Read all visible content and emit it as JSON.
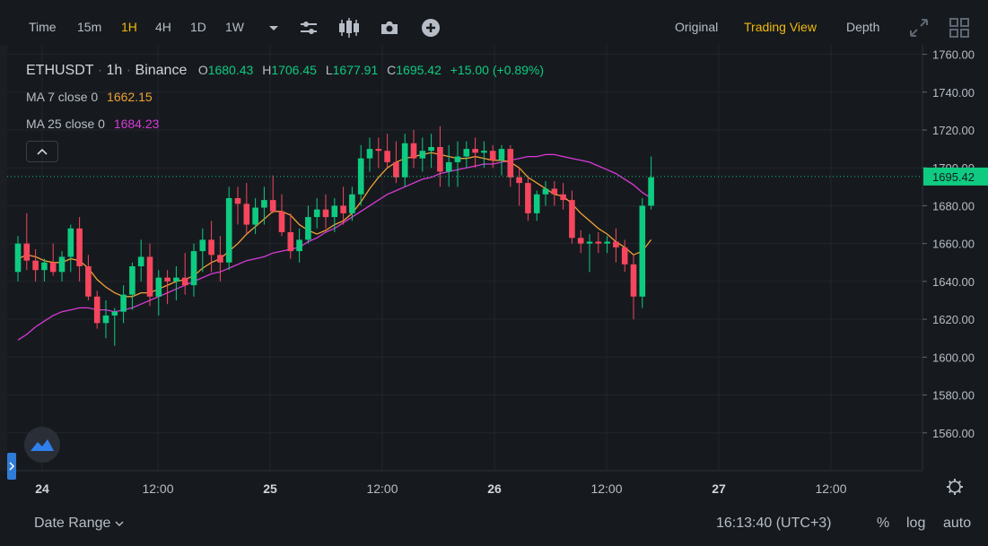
{
  "toolbar": {
    "left": [
      "Time",
      "15m",
      "1H",
      "4H",
      "1D",
      "1W"
    ],
    "active": "1H",
    "views": [
      "Original",
      "Trading View",
      "Depth"
    ],
    "active_view": "Trading View"
  },
  "legend": {
    "symbol": "ETHUSDT",
    "interval": "1h",
    "exchange": "Binance",
    "o_label": "O",
    "o": "1680.43",
    "h_label": "H",
    "h": "1706.45",
    "l_label": "L",
    "l": "1677.91",
    "c_label": "C",
    "c": "1695.42",
    "change": "+15.00 (+0.89%)",
    "ma7_label": "MA 7 close 0",
    "ma7": "1662.15",
    "ma25_label": "MA 25 close 0",
    "ma25": "1684.23"
  },
  "bottom": {
    "date_range": "Date Range",
    "time": "16:13:40 (UTC+3)",
    "pct": "%",
    "log": "log",
    "auto": "auto"
  },
  "colors": {
    "up": "#0ecb81",
    "down": "#f6465d",
    "ma7": "#f0a037",
    "ma25": "#d83ad8",
    "grid": "#22262c",
    "accent": "#f0b90b"
  },
  "chart_data": {
    "type": "candlestick",
    "ylim": [
      1540,
      1765
    ],
    "y_ticks": [
      "1760.00",
      "1740.00",
      "1720.00",
      "1700.00",
      "1680.00",
      "1660.00",
      "1640.00",
      "1620.00",
      "1600.00",
      "1580.00",
      "1560.00"
    ],
    "x_ticks": [
      "24",
      "12:00",
      "25",
      "12:00",
      "26",
      "12:00",
      "27",
      "12:00"
    ],
    "last_price": "1695.42",
    "candles": [
      [
        1645,
        1664,
        1640,
        1660
      ],
      [
        1660,
        1676,
        1646,
        1651
      ],
      [
        1651,
        1657,
        1640,
        1646
      ],
      [
        1646,
        1652,
        1640,
        1650
      ],
      [
        1650,
        1660,
        1643,
        1645
      ],
      [
        1645,
        1656,
        1640,
        1653
      ],
      [
        1653,
        1670,
        1645,
        1668
      ],
      [
        1668,
        1674,
        1640,
        1648
      ],
      [
        1648,
        1654,
        1630,
        1632
      ],
      [
        1632,
        1635,
        1615,
        1618
      ],
      [
        1618,
        1630,
        1610,
        1622
      ],
      [
        1622,
        1626,
        1606,
        1624
      ],
      [
        1624,
        1638,
        1618,
        1633
      ],
      [
        1633,
        1650,
        1625,
        1648
      ],
      [
        1648,
        1662,
        1640,
        1653
      ],
      [
        1653,
        1660,
        1627,
        1632
      ],
      [
        1632,
        1646,
        1622,
        1642
      ],
      [
        1642,
        1646,
        1628,
        1640
      ],
      [
        1640,
        1648,
        1630,
        1642
      ],
      [
        1642,
        1655,
        1633,
        1638
      ],
      [
        1638,
        1660,
        1632,
        1656
      ],
      [
        1656,
        1668,
        1645,
        1662
      ],
      [
        1662,
        1672,
        1645,
        1654
      ],
      [
        1654,
        1664,
        1640,
        1650
      ],
      [
        1650,
        1690,
        1646,
        1684
      ],
      [
        1684,
        1690,
        1670,
        1681
      ],
      [
        1681,
        1692,
        1665,
        1670
      ],
      [
        1670,
        1684,
        1665,
        1679
      ],
      [
        1679,
        1690,
        1670,
        1683
      ],
      [
        1683,
        1696,
        1676,
        1677
      ],
      [
        1677,
        1686,
        1664,
        1666
      ],
      [
        1666,
        1676,
        1652,
        1656
      ],
      [
        1656,
        1668,
        1650,
        1662
      ],
      [
        1662,
        1680,
        1660,
        1674
      ],
      [
        1674,
        1684,
        1668,
        1678
      ],
      [
        1678,
        1686,
        1668,
        1674
      ],
      [
        1674,
        1684,
        1666,
        1680
      ],
      [
        1680,
        1690,
        1670,
        1676
      ],
      [
        1676,
        1690,
        1672,
        1686
      ],
      [
        1686,
        1712,
        1680,
        1705
      ],
      [
        1705,
        1716,
        1698,
        1710
      ],
      [
        1710,
        1716,
        1700,
        1709
      ],
      [
        1709,
        1718,
        1700,
        1703
      ],
      [
        1703,
        1714,
        1692,
        1695
      ],
      [
        1695,
        1718,
        1690,
        1713
      ],
      [
        1713,
        1720,
        1700,
        1705
      ],
      [
        1705,
        1716,
        1698,
        1709
      ],
      [
        1709,
        1718,
        1700,
        1711
      ],
      [
        1711,
        1722,
        1690,
        1698
      ],
      [
        1698,
        1712,
        1690,
        1703
      ],
      [
        1703,
        1714,
        1690,
        1706
      ],
      [
        1706,
        1714,
        1700,
        1710
      ],
      [
        1710,
        1716,
        1700,
        1708
      ],
      [
        1708,
        1714,
        1700,
        1709
      ],
      [
        1709,
        1712,
        1700,
        1704
      ],
      [
        1704,
        1712,
        1696,
        1710
      ],
      [
        1710,
        1712,
        1690,
        1695
      ],
      [
        1695,
        1700,
        1680,
        1692
      ],
      [
        1692,
        1696,
        1672,
        1676
      ],
      [
        1676,
        1688,
        1672,
        1686
      ],
      [
        1686,
        1693,
        1680,
        1689
      ],
      [
        1689,
        1693,
        1680,
        1686
      ],
      [
        1686,
        1692,
        1678,
        1683
      ],
      [
        1683,
        1688,
        1660,
        1663
      ],
      [
        1663,
        1667,
        1655,
        1660
      ],
      [
        1660,
        1665,
        1645,
        1661
      ],
      [
        1661,
        1666,
        1655,
        1660
      ],
      [
        1660,
        1664,
        1655,
        1661
      ],
      [
        1661,
        1668,
        1650,
        1658
      ],
      [
        1658,
        1662,
        1645,
        1649
      ],
      [
        1649,
        1654,
        1620,
        1632
      ],
      [
        1632,
        1684,
        1626,
        1680
      ],
      [
        1680,
        1706,
        1678,
        1695
      ]
    ],
    "ma7": [
      1652,
      1654,
      1653,
      1651,
      1650,
      1650,
      1652,
      1651,
      1647,
      1641,
      1637,
      1634,
      1632,
      1632,
      1634,
      1634,
      1636,
      1638,
      1640,
      1641,
      1643,
      1647,
      1650,
      1652,
      1656,
      1660,
      1665,
      1669,
      1673,
      1677,
      1677,
      1675,
      1670,
      1667,
      1665,
      1667,
      1670,
      1672,
      1676,
      1682,
      1689,
      1695,
      1700,
      1703,
      1705,
      1706,
      1707,
      1708,
      1707,
      1706,
      1705,
      1705,
      1706,
      1705,
      1704,
      1704,
      1703,
      1700,
      1695,
      1692,
      1689,
      1686,
      1685,
      1681,
      1676,
      1672,
      1668,
      1665,
      1661,
      1658,
      1654,
      1656,
      1662
    ],
    "ma25": [
      1609,
      1612,
      1616,
      1619,
      1622,
      1624,
      1625,
      1626,
      1626,
      1625,
      1625,
      1624,
      1625,
      1626,
      1628,
      1630,
      1632,
      1634,
      1636,
      1638,
      1640,
      1642,
      1644,
      1645,
      1647,
      1649,
      1651,
      1652,
      1653,
      1655,
      1656,
      1657,
      1658,
      1661,
      1663,
      1666,
      1668,
      1671,
      1674,
      1677,
      1680,
      1683,
      1686,
      1688,
      1690,
      1692,
      1694,
      1695,
      1697,
      1698,
      1699,
      1700,
      1701,
      1702,
      1702,
      1703,
      1704,
      1705,
      1706,
      1706,
      1707,
      1707,
      1706,
      1705,
      1704,
      1703,
      1701,
      1699,
      1697,
      1694,
      1691,
      1687,
      1684
    ]
  }
}
